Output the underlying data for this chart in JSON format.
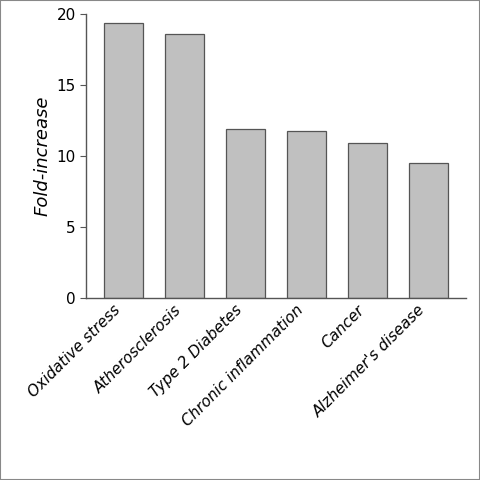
{
  "categories": [
    "Oxidative stress",
    "Atherosclerosis",
    "Type 2 Diabetes",
    "Chronic inflammation",
    "Cancer",
    "Alzheimer's disease"
  ],
  "values": [
    19.4,
    18.6,
    11.9,
    11.8,
    10.9,
    9.5
  ],
  "bar_color": "#c0c0c0",
  "bar_edgecolor": "#555555",
  "ylabel": "Fold-increase",
  "ylim": [
    0,
    20
  ],
  "yticks": [
    0,
    5,
    10,
    15,
    20
  ],
  "background_color": "#ffffff",
  "tick_labelsize": 11,
  "ylabel_fontsize": 13,
  "bar_width": 0.65,
  "border_color": "#888888",
  "figure_border": true
}
